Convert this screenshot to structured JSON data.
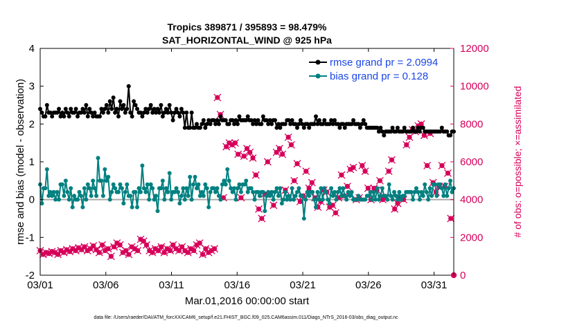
{
  "chart_data": {
    "type": "line",
    "title": [
      "Tropics 389871 / 395893 = 98.479%",
      "SAT_HORIZONTAL_WIND @ 925 hPa"
    ],
    "xlabel": "Mar.01,2016 00:00:00 start",
    "ylabel": "rmse and bias (model - observation)",
    "ylabel_right": "# of obs: o=possible; ×=assimilated",
    "footnote": "data file: /Users/raeder/DAI/ATM_forcXX/CAM6_setup/f.e21.FHIST_BGC.f09_025.CAM6assim.011/Diags_NTrS_2016-03/obs_diag_output.nc",
    "x_range": [
      0,
      31.5
    ],
    "ylim": [
      -2,
      4
    ],
    "ylim_right": [
      0,
      12000
    ],
    "x_ticks": [
      0,
      5,
      10,
      15,
      20,
      25,
      30
    ],
    "x_tick_labels": [
      "03/01",
      "03/06",
      "03/11",
      "03/16",
      "03/21",
      "03/26",
      "03/31"
    ],
    "y_ticks": [
      -2,
      -1,
      0,
      1,
      2,
      3,
      4
    ],
    "y_tick_labels": [
      "-2",
      "-1",
      "0",
      "1",
      "2",
      "3",
      "4"
    ],
    "y_right_ticks": [
      0,
      2000,
      4000,
      6000,
      8000,
      10000,
      12000
    ],
    "y_right_tick_labels": [
      "0",
      "2000",
      "4000",
      "6000",
      "8000",
      "10000",
      "12000"
    ],
    "zero_line": 0,
    "colors": {
      "rmse": "#000000",
      "bias": "#008080",
      "obs": "#d6005a",
      "zero": "#aaaaaa",
      "legend_text": "#1a46e6"
    },
    "series": [
      {
        "name": "rmse grand pr = 2.0994",
        "axis": "left",
        "values": [
          2.4,
          2.3,
          2.2,
          2.2,
          2.5,
          2.3,
          2.3,
          2.2,
          2.3,
          2.3,
          2.3,
          2.4,
          2.2,
          2.3,
          2.2,
          2.4,
          2.3,
          2.2,
          2.4,
          2.3,
          2.3,
          2.4,
          2.2,
          2.3,
          2.3,
          2.4,
          2.3,
          2.5,
          2.2,
          2.4,
          2.3,
          2.2,
          2.3,
          2.2,
          2.2,
          2.2,
          2.4,
          2.3,
          2.4,
          2.5,
          2.3,
          2.6,
          2.4,
          2.7,
          2.3,
          2.4,
          2.2,
          2.6,
          2.4,
          2.5,
          2.3,
          2.4,
          3.0,
          2.3,
          2.2,
          2.6,
          2.5,
          2.4,
          2.3,
          2.3,
          2.2,
          2.3,
          2.4,
          2.3,
          2.4,
          2.5,
          2.3,
          2.4,
          2.3,
          2.4,
          2.3,
          2.5,
          2.2,
          2.3,
          2.4,
          2.3,
          2.5,
          2.3,
          2.1,
          2.3,
          2.4,
          2.3,
          2.2,
          2.4,
          2.3,
          1.9,
          2.3,
          1.9,
          1.9,
          2.3,
          1.9,
          1.9,
          2.0,
          1.9,
          1.9,
          2.0,
          2.1,
          1.9,
          2.0,
          2.1,
          2.0,
          2.1,
          2.1,
          2.0,
          2.1,
          2.0,
          2.2,
          2.1,
          2.1,
          2.1,
          2.0,
          2.0,
          2.1,
          2.1,
          2.0,
          2.1,
          2.0,
          2.2,
          2.1,
          2.1,
          2.1,
          2.1,
          2.2,
          2.1,
          2.1,
          2.0,
          2.1,
          2.0,
          2.1,
          2.0,
          2.0,
          2.2,
          2.1,
          2.1,
          2.0,
          2.1,
          2.0,
          2.1,
          2.1,
          1.9,
          2.0,
          1.9,
          2.0,
          2.0,
          2.0,
          2.1,
          2.1,
          2.0,
          2.1,
          2.0,
          2.0,
          1.9,
          2.0,
          2.1,
          2.0,
          1.9,
          2.0,
          2.0,
          1.9,
          2.0,
          2.0,
          2.0,
          2.2,
          2.0,
          2.1,
          2.0,
          2.0,
          2.1,
          2.0,
          2.0,
          2.0,
          2.1,
          2.0,
          2.1,
          2.0,
          2.0,
          1.9,
          2.0,
          2.0,
          1.9,
          2.0,
          2.0,
          2.0,
          2.0,
          2.1,
          2.0,
          2.0,
          2.0,
          1.9,
          2.0,
          2.1,
          2.0,
          1.9,
          1.9,
          1.9,
          1.9,
          1.9,
          1.9,
          1.9,
          1.8,
          1.9,
          1.8,
          1.7,
          1.8,
          1.8,
          1.8,
          1.8,
          1.9,
          1.8,
          1.8,
          1.9,
          1.8,
          1.8,
          1.8,
          1.9,
          1.8,
          1.8,
          1.8,
          1.8,
          1.9,
          1.8,
          1.8,
          1.9,
          1.8,
          1.9,
          1.9,
          1.8,
          1.8,
          1.8,
          1.8,
          1.8,
          1.8,
          1.8,
          1.8,
          1.8,
          1.8,
          1.9,
          1.8,
          1.8,
          1.8,
          1.7,
          1.7,
          1.8,
          1.8
        ]
      },
      {
        "name": "bias grand pr = 0.128",
        "axis": "left",
        "values": [
          0.4,
          -0.1,
          0.3,
          0.3,
          0.8,
          0.1,
          0.2,
          0.1,
          0.2,
          0.0,
          0.2,
          0.0,
          0.4,
          0.4,
          0.1,
          0.5,
          0.2,
          0.0,
          0.3,
          -0.2,
          0.1,
          0.0,
          0.0,
          0.2,
          0.1,
          -0.2,
          0.3,
          0.0,
          0.4,
          0.3,
          0.1,
          0.5,
          0.3,
          0.1,
          1.1,
          0.5,
          0.5,
          0.1,
          0.8,
          0.5,
          0.6,
          0.0,
          0.2,
          0.4,
          0.3,
          0.2,
          0.2,
          0.4,
          0.3,
          -0.1,
          0.2,
          0.4,
          0.1,
          0.1,
          -0.2,
          0.2,
          0.2,
          -0.2,
          0.3,
          0.2,
          0.9,
          0.3,
          0.2,
          0.4,
          0.0,
          0.4,
          0.3,
          0.0,
          0.1,
          -0.3,
          0.3,
          0.3,
          0.5,
          0.0,
          0.3,
          0.2,
          0.7,
          0.0,
          0.2,
          0.2,
          0.3,
          0.2,
          -0.1,
          0.1,
          0.3,
          0.0,
          0.3,
          0.1,
          0.6,
          0.0,
          0.4,
          0.6,
          0.3,
          0.4,
          0.1,
          0.2,
          0.1,
          0.4,
          0.3,
          -0.2,
          0.2,
          0.3,
          0.3,
          0.2,
          0.3,
          0.1,
          0.0,
          0.4,
          0.5,
          0.4,
          0.8,
          0.5,
          0.3,
          0.2,
          0.3,
          0.0,
          0.3,
          0.4,
          0.2,
          0.4,
          0.4,
          0.5,
          0.2,
          0.3,
          0.3,
          0.2,
          0.0,
          0.2,
          0.2,
          0.1,
          0.2,
          0.2,
          -0.3,
          0.1,
          0.2,
          0.1,
          0.2,
          0.0,
          0.2,
          0.3,
          0.1,
          0.3,
          -0.1,
          0.0,
          0.2,
          0.0,
          0.1,
          0.0,
          0.3,
          0.0,
          0.1,
          0.2,
          0.3,
          0.1,
          0.1,
          -0.5,
          0.0,
          0.2,
          0.1,
          0.2,
          0.2,
          0.0,
          -0.2,
          0.2,
          0.0,
          0.3,
          0.0,
          0.3,
          0.2,
          0.0,
          -0.1,
          0.3,
          0.1,
          0.2,
          0.0,
          0.2,
          0.3,
          0.1,
          0.3,
          0.1,
          0.0,
          0.2,
          0.1,
          0.2,
          0.0,
          0.0,
          0.0,
          0.1,
          0.0,
          0.0,
          0.0,
          0.0,
          0.1,
          0.1,
          0.2,
          0.0,
          0.2,
          0.0,
          0.3,
          0.0,
          0.1,
          0.3,
          0.1,
          0.1,
          0.0,
          0.4,
          0.1,
          0.0,
          0.2,
          0.1,
          0.0,
          0.2,
          0.0,
          0.1,
          0.1,
          0.2,
          0.2,
          0.2,
          0.2,
          0.0,
          0.2,
          0.3,
          0.2,
          0.0,
          0.2,
          0.1,
          0.4,
          0.2,
          0.0,
          0.3,
          0.1,
          0.4,
          0.4,
          0.1,
          0.4,
          0.4,
          0.3,
          0.1,
          0.4,
          0.1,
          0.3,
          0.5,
          0.2,
          0.3
        ]
      }
    ],
    "obs_counts_right_axis": [
      1300,
      1100,
      1200,
      1150,
      1250,
      1200,
      1100,
      1300,
      1200,
      1350,
      1250,
      1400,
      1300,
      1450,
      1350,
      1500,
      1300,
      1400,
      1550,
      1350,
      1200,
      1600,
      1300,
      1400,
      1000,
      1500,
      1700,
      1600,
      1200,
      1300,
      1100,
      1500,
      1400,
      1300,
      1900,
      1800,
      1600,
      1300,
      1200,
      1400,
      1300,
      1500,
      1200,
      1400,
      1300,
      1600,
      1400,
      1300,
      1500,
      1300,
      1200,
      1400,
      1300,
      1600,
      1700,
      1100,
      1400,
      1200,
      1300,
      1400,
      9400,
      8500,
      4100,
      6800,
      7000,
      6900,
      7000,
      6400,
      4100,
      6300,
      6700,
      6500,
      6200,
      5300,
      3500,
      3000,
      4300,
      6000,
      4300,
      3700,
      6500,
      6700,
      6400,
      4500,
      7300,
      6900,
      5000,
      5900,
      3900,
      4200,
      5500,
      4600,
      4900,
      4100,
      3600,
      3900,
      4500,
      4400,
      3600,
      3700,
      3300,
      4100,
      5300,
      4200,
      4700,
      5600,
      5700,
      4000,
      4100,
      5800,
      5500,
      4600,
      4000,
      4600,
      4500,
      5000,
      4000,
      4100,
      5500,
      6100,
      3500,
      3800,
      4100,
      4000,
      6900,
      7300,
      7700,
      7600,
      7900,
      8000,
      7400,
      5800,
      7500,
      4900,
      4400,
      4700,
      5800,
      4700,
      5400,
      3000,
      0
    ]
  }
}
